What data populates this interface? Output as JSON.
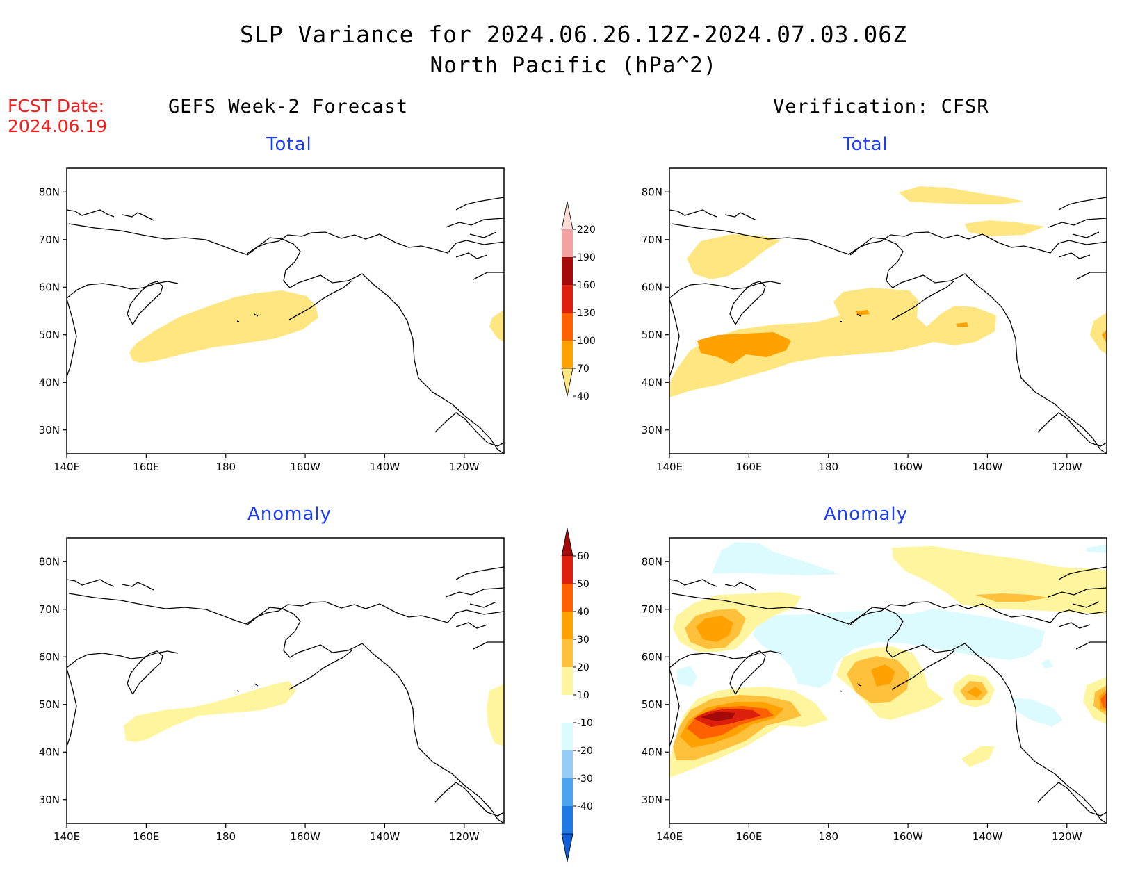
{
  "title": {
    "line1": "SLP Variance for 2024.06.26.12Z-2024.07.03.06Z",
    "line2": "North Pacific (hPa^2)"
  },
  "forecast_date": {
    "label": "FCST Date:",
    "value": "2024.06.19"
  },
  "columns": {
    "left": "GEFS Week-2 Forecast",
    "right": "Verification: CFSR"
  },
  "panels": {
    "forecast_total": {
      "subtitle": "Total"
    },
    "forecast_anomaly": {
      "subtitle": "Anomaly"
    },
    "verification_total": {
      "subtitle": "Total"
    },
    "verification_anomaly": {
      "subtitle": "Anomaly"
    }
  },
  "axes": {
    "x_ticks": [
      "140E",
      "160E",
      "180",
      "160W",
      "140W",
      "120W"
    ],
    "y_ticks": [
      "80N",
      "70N",
      "60N",
      "50N",
      "40N",
      "30N"
    ],
    "x_range_lon": [
      140,
      250
    ],
    "y_range_lat": [
      25,
      85
    ]
  },
  "colorbars": {
    "total": {
      "levels": [
        "220",
        "190",
        "160",
        "130",
        "100",
        "70",
        "40"
      ],
      "colors": [
        "#fddcd6",
        "#f3a2a2",
        "#a50a0a",
        "#dd1f0d",
        "#ff6000",
        "#ffa100",
        "#ffe680"
      ]
    },
    "anomaly": {
      "levels": [
        "60",
        "50",
        "40",
        "30",
        "20",
        "10",
        "-10",
        "-20",
        "-30",
        "-40"
      ],
      "colors": [
        "#a50a0a",
        "#dd1f0d",
        "#ff6000",
        "#ffa100",
        "#ffc03c",
        "#fff59e",
        "#ffffff",
        "#dcfbff",
        "#97cdf4",
        "#4aa3ec",
        "#1f78e2",
        "#0e5fd8"
      ]
    }
  },
  "colors": {
    "title_text": "#000000",
    "subtitle_text": "#1a3cff",
    "fcst_text": "#ff1a1a",
    "coastline": "#000000"
  }
}
